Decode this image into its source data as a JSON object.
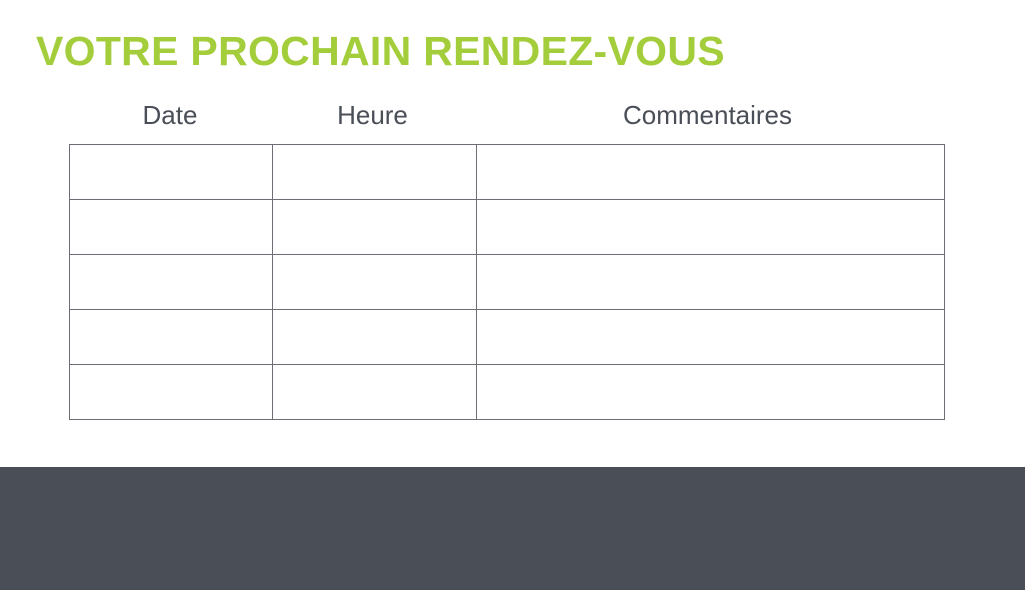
{
  "title": "VOTRE PROCHAIN RENDEZ-VOUS",
  "table": {
    "headers": [
      "Date",
      "Heure",
      "Commentaires"
    ],
    "rows": [
      [
        "",
        "",
        ""
      ],
      [
        "",
        "",
        ""
      ],
      [
        "",
        "",
        ""
      ],
      [
        "",
        "",
        ""
      ],
      [
        "",
        "",
        ""
      ]
    ]
  },
  "colors": {
    "accent": "#a4cd3c",
    "text": "#4a4e57",
    "footer": "#4a4e57"
  }
}
